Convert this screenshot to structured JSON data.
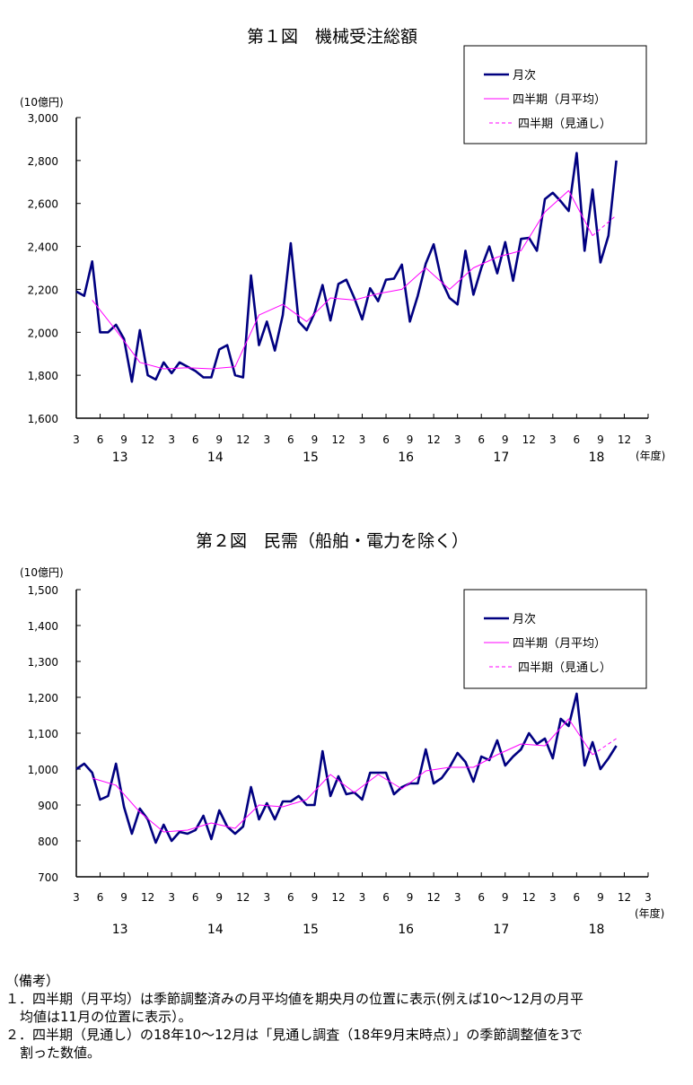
{
  "chart_data": [
    {
      "type": "line",
      "title": "第１図　機械受注総額",
      "unit": "(10億円)",
      "xlabel": "(年度)",
      "ylim": [
        1600,
        3000
      ],
      "yticks": [
        1600,
        1800,
        2000,
        2200,
        2400,
        2600,
        2800,
        3000
      ],
      "ytick_labels": [
        "1,600",
        "1,800",
        "2,000",
        "2,200",
        "2,400",
        "2,600",
        "2,800",
        "3,000"
      ],
      "month_ticks": [
        "3",
        "6",
        "9",
        "12",
        "3",
        "6",
        "9",
        "12",
        "3",
        "6",
        "9",
        "12",
        "3",
        "6",
        "9",
        "12",
        "3",
        "6",
        "9",
        "12",
        "3",
        "6",
        "9",
        "12",
        "3"
      ],
      "year_labels": [
        "13",
        "14",
        "15",
        "16",
        "17",
        "18"
      ],
      "x_start": "2013-03",
      "legend": {
        "position": "top-right",
        "entries": [
          "月次",
          "四半期（月平均）",
          "四半期（見通し）"
        ]
      },
      "series": [
        {
          "name": "月次",
          "color": "#000080",
          "style": "solid-thick",
          "start_index": 0,
          "values": [
            2190,
            2170,
            2330,
            2000,
            2000,
            2035,
            1970,
            1770,
            2010,
            1800,
            1780,
            1860,
            1810,
            1860,
            1840,
            1820,
            1790,
            1790,
            1920,
            1940,
            1800,
            1790,
            2265,
            1940,
            2050,
            1915,
            2080,
            2415,
            2050,
            2010,
            2090,
            2220,
            2055,
            2225,
            2245,
            2160,
            2060,
            2205,
            2145,
            2245,
            2250,
            2315,
            2050,
            2170,
            2320,
            2410,
            2240,
            2160,
            2130,
            2380,
            2175,
            2300,
            2400,
            2275,
            2420,
            2240,
            2435,
            2440,
            2380,
            2620,
            2650,
            2610,
            2565,
            2835,
            2380,
            2665,
            2325,
            2450,
            2800
          ]
        },
        {
          "name": "四半期（月平均）",
          "color": "#ff00ff",
          "style": "solid-thin",
          "start_index": 2,
          "step": 3,
          "values": [
            2150,
            2010,
            1860,
            1830,
            1835,
            1830,
            1840,
            2080,
            2130,
            2050,
            2160,
            2150,
            2180,
            2200,
            2300,
            2200,
            2300,
            2350,
            2380,
            2560,
            2660,
            2450
          ]
        },
        {
          "name": "四半期（見通し）",
          "color": "#ff00ff",
          "style": "dashed",
          "start_index": 65,
          "step": 3,
          "values": [
            2450,
            2545
          ]
        }
      ]
    },
    {
      "type": "line",
      "title": "第２図　民需（船舶・電力を除く）",
      "unit": "(10億円)",
      "xlabel": "(年度)",
      "ylim": [
        700,
        1500
      ],
      "yticks": [
        700,
        800,
        900,
        1000,
        1100,
        1200,
        1300,
        1400,
        1500
      ],
      "ytick_labels": [
        "700",
        "800",
        "900",
        "1,000",
        "1,100",
        "1,200",
        "1,300",
        "1,400",
        "1,500"
      ],
      "month_ticks": [
        "3",
        "6",
        "9",
        "12",
        "3",
        "6",
        "9",
        "12",
        "3",
        "6",
        "9",
        "12",
        "3",
        "6",
        "9",
        "12",
        "3",
        "6",
        "9",
        "12",
        "3",
        "6",
        "9",
        "12",
        "3"
      ],
      "year_labels": [
        "13",
        "14",
        "15",
        "16",
        "17",
        "18"
      ],
      "x_start": "2013-03",
      "legend": {
        "position": "top-right",
        "entries": [
          "月次",
          "四半期（月平均）",
          "四半期（見通し）"
        ]
      },
      "series": [
        {
          "name": "月次",
          "color": "#000080",
          "style": "solid-thick",
          "start_index": 0,
          "values": [
            1000,
            1015,
            990,
            915,
            925,
            1015,
            895,
            820,
            890,
            860,
            795,
            845,
            800,
            825,
            820,
            830,
            870,
            805,
            885,
            840,
            820,
            840,
            950,
            860,
            905,
            860,
            910,
            910,
            925,
            900,
            900,
            1050,
            925,
            980,
            930,
            935,
            915,
            990,
            990,
            990,
            930,
            950,
            960,
            960,
            1055,
            960,
            975,
            1005,
            1045,
            1020,
            965,
            1035,
            1025,
            1080,
            1010,
            1035,
            1055,
            1100,
            1070,
            1085,
            1030,
            1140,
            1120,
            1210,
            1010,
            1075,
            1000,
            1030,
            1065
          ]
        },
        {
          "name": "四半期（月平均）",
          "color": "#ff00ff",
          "style": "solid-thin",
          "start_index": 2,
          "step": 3,
          "values": [
            975,
            955,
            880,
            825,
            830,
            850,
            835,
            900,
            895,
            915,
            985,
            935,
            985,
            945,
            995,
            1005,
            1005,
            1040,
            1070,
            1065,
            1140,
            1040
          ]
        },
        {
          "name": "四半期（見通し）",
          "color": "#ff00ff",
          "style": "dashed",
          "start_index": 65,
          "step": 3,
          "values": [
            1040,
            1085
          ]
        }
      ]
    }
  ],
  "notes": {
    "heading": "（備考）",
    "line1a": "１．四半期（月平均）は季節調整済みの月平均値を期央月の位置に表示(例えば10～12月の月平",
    "line1b": "均値は11月の位置に表示）。",
    "line2a": "２．四半期（見通し）の18年10～12月は「見通し調査（18年9月末時点）」の季節調整値を3で",
    "line2b": "割った数値。"
  }
}
